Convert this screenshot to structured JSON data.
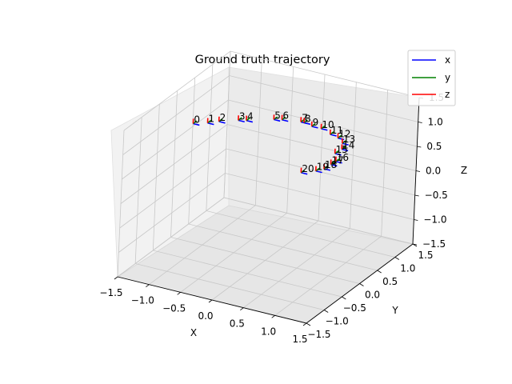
{
  "chart_data": {
    "type": "scatter",
    "projection": "3d",
    "title": "Ground truth trajectory",
    "xlabel": "X",
    "ylabel": "Y",
    "zlabel": "Z",
    "xlim": [
      -1.5,
      1.5
    ],
    "ylim": [
      -1.5,
      1.5
    ],
    "zlim": [
      -1.5,
      1.5
    ],
    "ticks": [
      "−1.5",
      "−1.0",
      "−0.5",
      "0.0",
      "0.5",
      "1.0",
      "1.5"
    ],
    "grid": true,
    "legend_position": "top-right",
    "legend": [
      {
        "label": "x",
        "color": "#0000ff"
      },
      {
        "label": "y",
        "color": "#008000"
      },
      {
        "label": "z",
        "color": "#ff0000"
      }
    ],
    "poses": [
      {
        "label": "0",
        "x": -1.2,
        "y": -0.05,
        "z": 0.95
      },
      {
        "label": "1",
        "x": -1.0,
        "y": 0.0,
        "z": 1.0
      },
      {
        "label": "2",
        "x": -0.85,
        "y": 0.05,
        "z": 1.05
      },
      {
        "label": "3",
        "x": -0.6,
        "y": 0.15,
        "z": 1.1
      },
      {
        "label": "4",
        "x": -0.5,
        "y": 0.2,
        "z": 1.1
      },
      {
        "label": "5",
        "x": -0.15,
        "y": 0.35,
        "z": 1.15
      },
      {
        "label": "6",
        "x": -0.05,
        "y": 0.4,
        "z": 1.15
      },
      {
        "label": "7",
        "x": 0.25,
        "y": 0.4,
        "z": 1.2
      },
      {
        "label": "8",
        "x": 0.3,
        "y": 0.4,
        "z": 1.2
      },
      {
        "label": "9",
        "x": 0.45,
        "y": 0.35,
        "z": 1.2
      },
      {
        "label": "10",
        "x": 0.6,
        "y": 0.35,
        "z": 1.2
      },
      {
        "label": "11",
        "x": 0.8,
        "y": 0.25,
        "z": 1.2
      },
      {
        "label": "12",
        "x": 0.95,
        "y": 0.2,
        "z": 1.2
      },
      {
        "label": "13",
        "x": 1.05,
        "y": 0.15,
        "z": 1.15
      },
      {
        "label": "14",
        "x": 1.1,
        "y": 0.05,
        "z": 1.1
      },
      {
        "label": "15",
        "x": 1.05,
        "y": -0.05,
        "z": 1.05
      },
      {
        "label": "16",
        "x": 1.15,
        "y": -0.2,
        "z": 1.0
      },
      {
        "label": "17",
        "x": 1.1,
        "y": -0.25,
        "z": 0.95
      },
      {
        "label": "18",
        "x": 1.05,
        "y": -0.35,
        "z": 0.9
      },
      {
        "label": "19",
        "x": 0.95,
        "y": -0.4,
        "z": 0.85
      },
      {
        "label": "20",
        "x": 0.8,
        "y": -0.55,
        "z": 0.85
      }
    ]
  }
}
